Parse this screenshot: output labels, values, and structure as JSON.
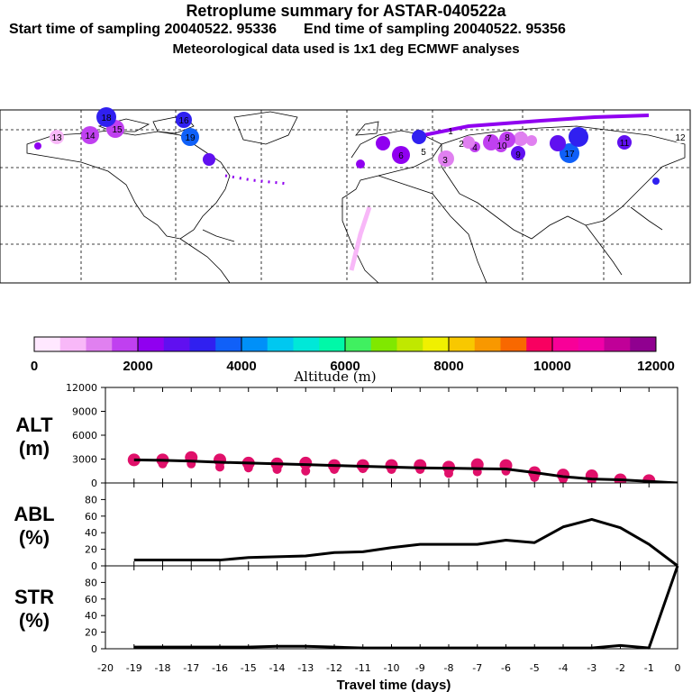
{
  "header": {
    "title": "Retroplume summary for ASTAR-040522a",
    "start_label": "Start time of sampling 20040522. 95336",
    "end_label": "End time of sampling 20040522. 95356",
    "met_line": "Meteorological data used is 1x1 deg ECMWF analyses"
  },
  "map": {
    "labels": [
      "1",
      "2",
      "3",
      "4",
      "5",
      "6",
      "7",
      "8",
      "9",
      "10",
      "11",
      "12",
      "13",
      "14",
      "15",
      "16",
      "17",
      "18",
      "19"
    ]
  },
  "colorbar": {
    "label": "Altitude (m)",
    "ticks": [
      "0",
      "2000",
      "4000",
      "6000",
      "8000",
      "10000",
      "12000"
    ],
    "colors": [
      "#ffe8ff",
      "#f8b8f8",
      "#e080f0",
      "#c040f0",
      "#9000f0",
      "#6010f0",
      "#3020f0",
      "#1060f8",
      "#0090f8",
      "#00c8f0",
      "#00e8d8",
      "#00f8a8",
      "#40f060",
      "#80e800",
      "#c0e800",
      "#f0f000",
      "#f8c800",
      "#f89800",
      "#f86800",
      "#f80060",
      "#f80098",
      "#f000a8",
      "#c00098",
      "#900090"
    ]
  },
  "chart_data": [
    {
      "type": "line",
      "panel": "ALT",
      "ylabel": "ALT",
      "yunit": "(m)",
      "ylim": [
        0,
        12000
      ],
      "yticks": [
        "0",
        "3000",
        "6000",
        "9000",
        "12000"
      ],
      "x": [
        -19,
        -18,
        -17,
        -16,
        -15,
        -14,
        -13,
        -12,
        -11,
        -10,
        -9,
        -8,
        -7,
        -6,
        -5,
        -4,
        -3,
        -2,
        -1,
        0
      ],
      "series": [
        {
          "name": "mean altitude",
          "values": [
            2900,
            2850,
            2750,
            2600,
            2500,
            2400,
            2300,
            2200,
            2100,
            2000,
            1900,
            1850,
            1800,
            1750,
            1300,
            800,
            500,
            400,
            200,
            0
          ]
        }
      ],
      "markers": [
        {
          "x": -19,
          "y": [
            2900,
            2700
          ]
        },
        {
          "x": -18,
          "y": [
            2900,
            2400
          ]
        },
        {
          "x": -17,
          "y": [
            3200,
            2400
          ]
        },
        {
          "x": -16,
          "y": [
            2900,
            2000
          ]
        },
        {
          "x": -15,
          "y": [
            2500,
            1900
          ]
        },
        {
          "x": -14,
          "y": [
            2400,
            1700
          ]
        },
        {
          "x": -13,
          "y": [
            2500,
            1500
          ]
        },
        {
          "x": -12,
          "y": [
            2200,
            1700
          ]
        },
        {
          "x": -11,
          "y": [
            2200,
            1800
          ]
        },
        {
          "x": -10,
          "y": [
            2200,
            1700
          ]
        },
        {
          "x": -9,
          "y": [
            2200,
            1700
          ]
        },
        {
          "x": -8,
          "y": [
            2000,
            1200
          ]
        },
        {
          "x": -7,
          "y": [
            2300,
            1400
          ]
        },
        {
          "x": -6,
          "y": [
            2200,
            1500
          ]
        },
        {
          "x": -5,
          "y": [
            1300,
            700
          ]
        },
        {
          "x": -4,
          "y": [
            1000,
            500
          ]
        },
        {
          "x": -3,
          "y": [
            900,
            300
          ]
        },
        {
          "x": -2,
          "y": [
            400,
            200
          ]
        },
        {
          "x": -1,
          "y": [
            300,
            150
          ]
        }
      ]
    },
    {
      "type": "line",
      "panel": "ABL",
      "ylabel": "ABL",
      "yunit": "(%)",
      "ylim": [
        0,
        100
      ],
      "yticks": [
        "0",
        "20",
        "40",
        "60",
        "80"
      ],
      "x": [
        -19,
        -18,
        -17,
        -16,
        -15,
        -14,
        -13,
        -12,
        -11,
        -10,
        -9,
        -8,
        -7,
        -6,
        -5,
        -4,
        -3,
        -2,
        -1,
        0
      ],
      "series": [
        {
          "name": "ABL fraction",
          "values": [
            7,
            7,
            7,
            7,
            10,
            11,
            12,
            16,
            17,
            22,
            26,
            26,
            26,
            31,
            28,
            47,
            56,
            46,
            26,
            0
          ]
        }
      ]
    },
    {
      "type": "line",
      "panel": "STR",
      "ylabel": "STR",
      "yunit": "(%)",
      "ylim": [
        0,
        100
      ],
      "yticks": [
        "0",
        "20",
        "40",
        "60",
        "80"
      ],
      "x": [
        -19,
        -18,
        -17,
        -16,
        -15,
        -14,
        -13,
        -12,
        -11,
        -10,
        -9,
        -8,
        -7,
        -6,
        -5,
        -4,
        -3,
        -2,
        -1,
        0
      ],
      "series": [
        {
          "name": "STR fraction",
          "values": [
            2,
            2,
            2,
            2,
            2,
            3,
            3,
            2,
            1,
            1,
            1,
            1,
            1,
            1,
            1,
            1,
            1,
            4,
            1,
            100
          ]
        }
      ]
    }
  ],
  "xaxis": {
    "label": "Travel time (days)",
    "ticks": [
      "-20",
      "-19",
      "-18",
      "-17",
      "-16",
      "-15",
      "-14",
      "-13",
      "-12",
      "-11",
      "-10",
      "-9",
      "-8",
      "-7",
      "-6",
      "-5",
      "-4",
      "-3",
      "-2",
      "-1",
      "0"
    ]
  }
}
